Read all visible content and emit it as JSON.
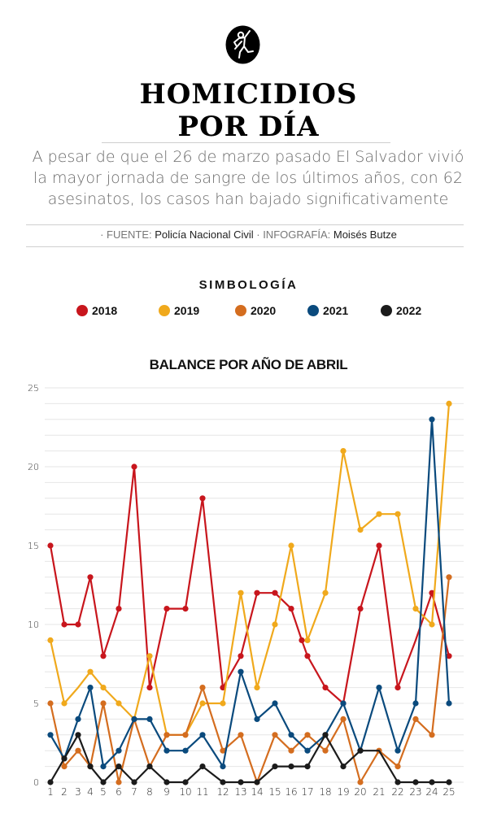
{
  "header": {
    "icon": "body-outline-icon",
    "title_line1": "HOMICIDIOS",
    "title_line2": "POR DÍA",
    "subtitle": "A pesar de que el 26 de marzo pasado El Salvador vivió la mayor jornada de sangre de los últimos años, con 62 asesinatos, los casos han bajado significativamente",
    "source_label": "· FUENTE: ",
    "source_value": "Policía Nacional Civil",
    "infographic_label": " · INFOGRAFÍA: ",
    "infographic_value": "Moisés Butze"
  },
  "legend": {
    "title": "SIMBOLOGÍA",
    "items": [
      {
        "label": "2018",
        "color": "#c8161d"
      },
      {
        "label": "2019",
        "color": "#f0a91c"
      },
      {
        "label": "2020",
        "color": "#d46d1f"
      },
      {
        "label": "2021",
        "color": "#0a4a7d"
      },
      {
        "label": "2022",
        "color": "#1b1b1b"
      }
    ]
  },
  "chart_data": {
    "type": "line",
    "title": "BALANCE POR AÑO DE ABRIL",
    "xlabel": "",
    "ylabel": "",
    "x": [
      1,
      2,
      3,
      4,
      5,
      6,
      7,
      8,
      9,
      10,
      11,
      12,
      13,
      14,
      15,
      16,
      17,
      18,
      19,
      20,
      21,
      22,
      23,
      24,
      25
    ],
    "ylim": [
      0,
      25
    ],
    "yticks": [
      0,
      5,
      10,
      15,
      20,
      25
    ],
    "grid": true,
    "legend_position": "top-center",
    "series": [
      {
        "name": "2018",
        "color": "#c8161d",
        "values": [
          15,
          10,
          10,
          13,
          8,
          11,
          20,
          6,
          11,
          11,
          18,
          6,
          8,
          12,
          12,
          11,
          8,
          6,
          5,
          11,
          15,
          6,
          9,
          12,
          8
        ],
        "extra_points": [
          {
            "x": 16.65,
            "y": 9
          }
        ],
        "unmarked_x": [
          23
        ]
      },
      {
        "name": "2019",
        "color": "#f0a91c",
        "values": [
          9,
          5,
          6,
          7,
          6,
          5,
          4,
          8,
          3,
          3,
          5,
          5,
          12,
          6,
          10,
          15,
          9,
          12,
          21,
          16,
          17,
          17,
          11,
          10,
          24
        ],
        "unmarked_x": [
          3
        ]
      },
      {
        "name": "2020",
        "color": "#d46d1f",
        "values": [
          5,
          1,
          2,
          1,
          5,
          0,
          4,
          1,
          3,
          3,
          6,
          2,
          3,
          0,
          3,
          2,
          3,
          2,
          4,
          0,
          2,
          1,
          4,
          3,
          13
        ]
      },
      {
        "name": "2021",
        "color": "#0a4a7d",
        "values": [
          3,
          1.5,
          4,
          6,
          1,
          2,
          4,
          4,
          2,
          2,
          3,
          1,
          7,
          4,
          5,
          3,
          2,
          3,
          5,
          2,
          6,
          2,
          5,
          23,
          5
        ]
      },
      {
        "name": "2022",
        "color": "#1b1b1b",
        "values": [
          0,
          1.5,
          3,
          1,
          0,
          1,
          0,
          1,
          0,
          0,
          1,
          0,
          0,
          0,
          1,
          1,
          1,
          3,
          1,
          2,
          2,
          0,
          0,
          0,
          0
        ],
        "unmarked_x": [
          21
        ]
      }
    ]
  }
}
